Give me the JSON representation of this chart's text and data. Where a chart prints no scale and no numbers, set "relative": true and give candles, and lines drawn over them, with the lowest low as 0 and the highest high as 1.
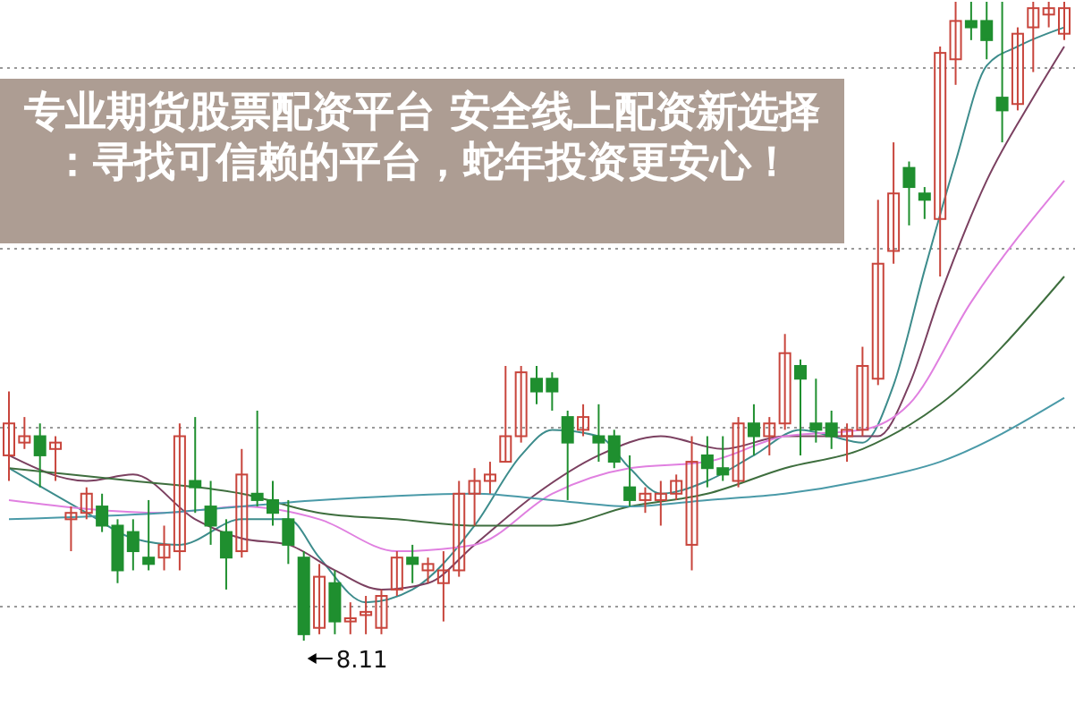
{
  "chart_data": {
    "type": "candlestick",
    "title": "专业期货股票配资平台 安全线上配资新选择：寻找可信赖的平台，蛇年投资更安心！",
    "relative": true,
    "grid": true,
    "annotations": [
      "8.11"
    ],
    "categories": [
      null,
      null,
      null,
      null,
      null,
      null,
      null,
      null,
      null,
      null,
      null,
      null,
      null,
      null,
      null,
      null,
      null,
      null,
      null,
      null,
      null,
      null,
      null,
      null,
      null,
      null,
      null,
      null,
      null,
      null,
      null,
      null,
      null,
      null,
      null,
      null,
      null,
      null,
      null,
      null,
      null,
      null,
      null,
      null,
      null,
      null,
      null,
      null,
      null,
      null,
      null,
      null,
      null,
      null,
      null,
      null,
      null,
      null,
      null,
      null,
      null,
      null,
      null,
      null,
      null,
      null,
      null,
      null,
      null
    ],
    "ohlc": [
      [
        0.29,
        0.39,
        0.25,
        0.34
      ],
      [
        0.31,
        0.35,
        0.3,
        0.32
      ],
      [
        0.32,
        0.34,
        0.24,
        0.29
      ],
      [
        0.3,
        0.32,
        0.25,
        0.31
      ],
      [
        0.19,
        0.21,
        0.14,
        0.2
      ],
      [
        0.2,
        0.24,
        0.19,
        0.23
      ],
      [
        0.21,
        0.23,
        0.17,
        0.18
      ],
      [
        0.18,
        0.19,
        0.09,
        0.11
      ],
      [
        0.17,
        0.19,
        0.11,
        0.14
      ],
      [
        0.13,
        0.22,
        0.11,
        0.12
      ],
      [
        0.13,
        0.18,
        0.11,
        0.15
      ],
      [
        0.14,
        0.34,
        0.11,
        0.32
      ],
      [
        0.25,
        0.35,
        0.2,
        0.24
      ],
      [
        0.21,
        0.25,
        0.15,
        0.18
      ],
      [
        0.17,
        0.19,
        0.08,
        0.13
      ],
      [
        0.14,
        0.3,
        0.13,
        0.26
      ],
      [
        0.23,
        0.36,
        0.21,
        0.22
      ],
      [
        0.22,
        0.25,
        0.18,
        0.2
      ],
      [
        0.19,
        0.22,
        0.12,
        0.15
      ],
      [
        0.13,
        0.14,
        0,
        0.01
      ],
      [
        0.02,
        0.12,
        0.01,
        0.1
      ],
      [
        0.09,
        0.11,
        0.01,
        0.03
      ],
      [
        0.03,
        0.06,
        0.01,
        0.035
      ],
      [
        0.04,
        0.07,
        0.01,
        0.045
      ],
      [
        0.02,
        0.08,
        0.01,
        0.07
      ],
      [
        0.08,
        0.14,
        0.07,
        0.13
      ],
      [
        0.13,
        0.15,
        0.09,
        0.12
      ],
      [
        0.11,
        0.13,
        0.09,
        0.12
      ],
      [
        0.09,
        0.14,
        0.03,
        0.11
      ],
      [
        0.11,
        0.25,
        0.1,
        0.23
      ],
      [
        0.23,
        0.27,
        0.18,
        0.25
      ],
      [
        0.25,
        0.28,
        0.23,
        0.26
      ],
      [
        0.28,
        0.43,
        0.28,
        0.32
      ],
      [
        0.32,
        0.43,
        0.31,
        0.42
      ],
      [
        0.41,
        0.43,
        0.37,
        0.39
      ],
      [
        0.41,
        0.42,
        0.36,
        0.39
      ],
      [
        0.35,
        0.36,
        0.22,
        0.31
      ],
      [
        0.33,
        0.37,
        0.32,
        0.35
      ],
      [
        0.32,
        0.37,
        0.28,
        0.31
      ],
      [
        0.32,
        0.33,
        0.27,
        0.28
      ],
      [
        0.24,
        0.29,
        0.21,
        0.22
      ],
      [
        0.22,
        0.24,
        0.2,
        0.23
      ],
      [
        0.22,
        0.25,
        0.18,
        0.23
      ],
      [
        0.23,
        0.26,
        0.22,
        0.25
      ],
      [
        0.15,
        0.32,
        0.11,
        0.28
      ],
      [
        0.29,
        0.32,
        0.24,
        0.27
      ],
      [
        0.27,
        0.32,
        0.25,
        0.26
      ],
      [
        0.25,
        0.35,
        0.24,
        0.34
      ],
      [
        0.34,
        0.37,
        0.29,
        0.32
      ],
      [
        0.32,
        0.35,
        0.29,
        0.34
      ],
      [
        0.34,
        0.48,
        0.33,
        0.45
      ],
      [
        0.43,
        0.44,
        0.29,
        0.41
      ],
      [
        0.34,
        0.41,
        0.31,
        0.33
      ],
      [
        0.34,
        0.36,
        0.3,
        0.32
      ],
      [
        0.32,
        0.34,
        0.28,
        0.33
      ],
      [
        0.33,
        0.46,
        0.32,
        0.43
      ],
      [
        0.41,
        0.69,
        0.4,
        0.59
      ],
      [
        0.61,
        0.78,
        0.59,
        0.7
      ],
      [
        0.74,
        0.75,
        0.65,
        0.71
      ],
      [
        0.7,
        0.71,
        0.66,
        0.69
      ],
      [
        0.66,
        0.93,
        0.57,
        0.92
      ],
      [
        0.91,
        1,
        0.87,
        0.97
      ],
      [
        0.97,
        1,
        0.94,
        0.96
      ],
      [
        0.97,
        1,
        0.91,
        0.94
      ],
      [
        0.85,
        1,
        0.78,
        0.83
      ],
      [
        0.84,
        0.96,
        0.83,
        0.95
      ],
      [
        0.96,
        1,
        0.89,
        0.99
      ],
      [
        0.98,
        1,
        0.96,
        0.99
      ],
      [
        0.95,
        1,
        0.94,
        0.99
      ]
    ],
    "series": [
      {
        "type": "line",
        "color": "#3d8c8c",
        "values": [
          0.27,
          null,
          null,
          null,
          null,
          0.2,
          null,
          null,
          0.16,
          null,
          null,
          0.15,
          null,
          null,
          null,
          0.19,
          null,
          null,
          0.19,
          null,
          0.13,
          null,
          null,
          0.06,
          null,
          null,
          0.08,
          null,
          null,
          null,
          0.18,
          null,
          null,
          0.29,
          null,
          0.33,
          null,
          null,
          0.32,
          null,
          0.27,
          null,
          0.23,
          null,
          null,
          0.25,
          null,
          null,
          0.29,
          null,
          null,
          0.33,
          null,
          0.32,
          null,
          0.31,
          null,
          0.4,
          null,
          0.58,
          null,
          0.75,
          null,
          0.9,
          null,
          0.93,
          null,
          null,
          0.96
        ]
      },
      {
        "type": "line",
        "color": "#7b4060",
        "values": [
          0.29,
          null,
          null,
          null,
          null,
          0.25,
          null,
          null,
          0.26,
          null,
          null,
          null,
          0.19,
          null,
          null,
          0.16,
          null,
          null,
          0.15,
          null,
          null,
          0.11,
          null,
          null,
          0.08,
          null,
          null,
          0.09,
          null,
          null,
          0.15,
          null,
          null,
          null,
          0.23,
          null,
          null,
          null,
          0.29,
          null,
          null,
          null,
          0.32,
          null,
          null,
          null,
          0.3,
          null,
          null,
          null,
          0.32,
          null,
          null,
          null,
          0.32,
          null,
          0.32,
          null,
          0.4,
          null,
          0.54,
          null,
          null,
          0.72,
          null,
          null,
          0.85,
          null,
          0.93
        ]
      },
      {
        "type": "line",
        "color": "#e080e0",
        "values": [
          0.22,
          null,
          null,
          null,
          null,
          null,
          null,
          null,
          null,
          null,
          0.2,
          null,
          null,
          null,
          null,
          0.21,
          null,
          null,
          null,
          null,
          0.19,
          null,
          null,
          null,
          null,
          0.14,
          null,
          null,
          null,
          null,
          0.15,
          null,
          null,
          null,
          null,
          0.23,
          null,
          null,
          null,
          null,
          0.27,
          null,
          null,
          null,
          null,
          0.28,
          null,
          null,
          null,
          null,
          0.32,
          null,
          null,
          null,
          null,
          0.33,
          null,
          null,
          0.37,
          null,
          null,
          null,
          0.53,
          null,
          null,
          null,
          null,
          null,
          0.72
        ]
      },
      {
        "type": "line",
        "color": "#3e6e3e",
        "values": [
          0.27,
          null,
          null,
          null,
          null,
          null,
          null,
          null,
          0.25,
          null,
          null,
          null,
          null,
          null,
          null,
          0.23,
          null,
          null,
          null,
          null,
          0.2,
          null,
          null,
          null,
          null,
          0.19,
          null,
          null,
          null,
          null,
          0.18,
          null,
          null,
          null,
          null,
          0.18,
          null,
          null,
          null,
          null,
          0.21,
          null,
          null,
          null,
          null,
          0.23,
          null,
          null,
          null,
          null,
          0.27,
          null,
          null,
          null,
          null,
          0.3,
          null,
          null,
          null,
          null,
          0.37,
          null,
          null,
          null,
          null,
          null,
          null,
          null,
          0.57
        ]
      },
      {
        "type": "line",
        "color": "#4a9aa8",
        "values": [
          0.19,
          null,
          null,
          null,
          null,
          null,
          null,
          null,
          null,
          null,
          0.2,
          null,
          null,
          null,
          null,
          null,
          null,
          null,
          null,
          null,
          0.22,
          null,
          null,
          null,
          null,
          null,
          null,
          null,
          null,
          null,
          0.23,
          null,
          null,
          null,
          null,
          0.22,
          null,
          null,
          null,
          null,
          0.21,
          null,
          null,
          null,
          null,
          0.22,
          null,
          null,
          null,
          null,
          0.23,
          null,
          null,
          null,
          null,
          0.25,
          null,
          null,
          null,
          null,
          0.28,
          null,
          null,
          null,
          null,
          null,
          null,
          null,
          0.38
        ]
      }
    ]
  }
}
